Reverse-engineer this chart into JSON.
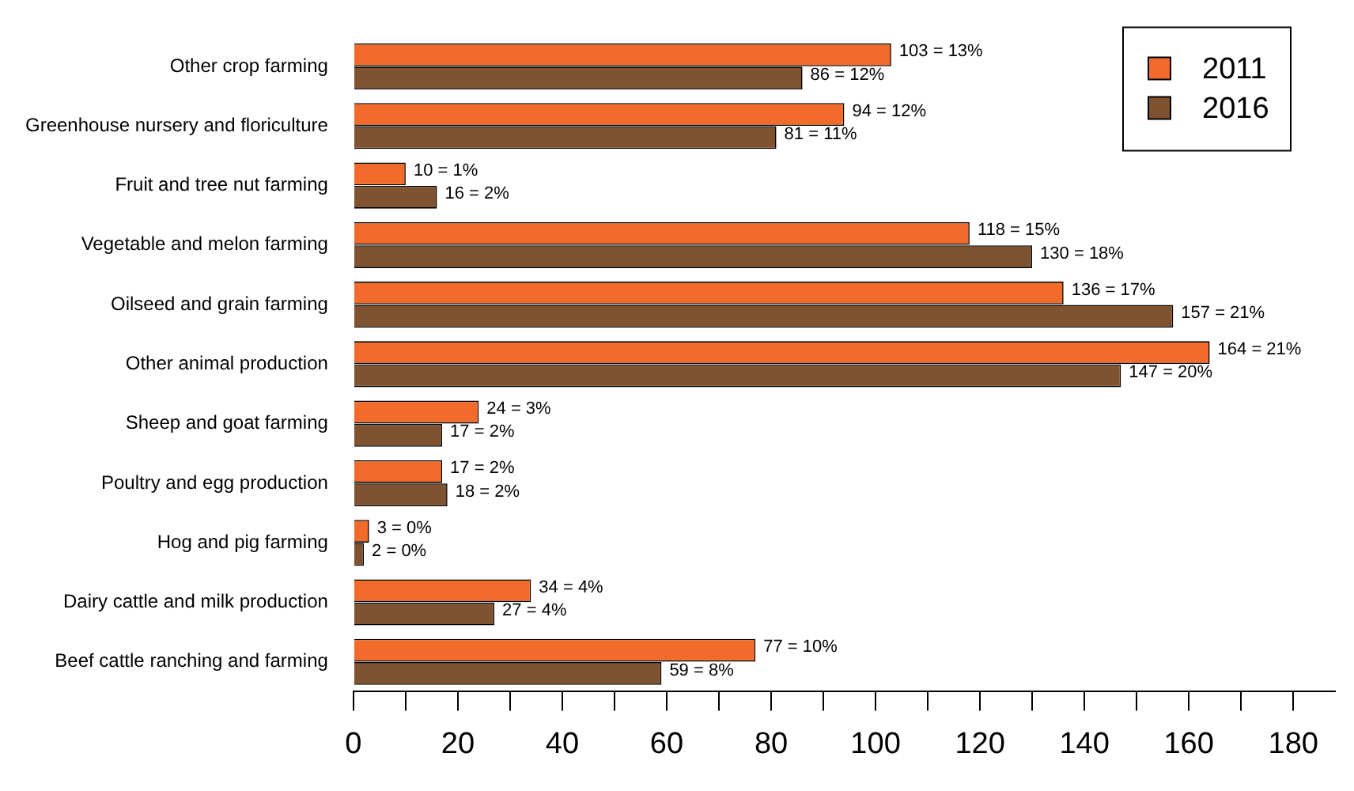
{
  "chart_data": {
    "type": "bar",
    "orientation": "horizontal",
    "categories": [
      "Other crop farming",
      "Greenhouse nursery and floriculture",
      "Fruit and tree nut farming",
      "Vegetable and melon farming",
      "Oilseed and grain farming",
      "Other animal production",
      "Sheep and goat farming",
      "Poultry and egg production",
      "Hog and pig farming",
      "Dairy cattle and milk production",
      "Beef cattle ranching and farming"
    ],
    "series": [
      {
        "name": "2011",
        "color": "#f26b2a",
        "values": [
          103,
          94,
          10,
          118,
          136,
          164,
          24,
          17,
          3,
          34,
          77
        ],
        "value_labels": [
          "103 = 13%",
          "94 = 12%",
          "10 = 1%",
          "118 = 15%",
          "136 = 17%",
          "164 = 21%",
          "24 = 3%",
          "17 = 2%",
          "3 = 0%",
          "34 = 4%",
          "77 = 10%"
        ]
      },
      {
        "name": "2016",
        "color": "#7f5230",
        "values": [
          86,
          81,
          16,
          130,
          157,
          147,
          17,
          18,
          2,
          27,
          59
        ],
        "value_labels": [
          "86 = 12%",
          "81 = 11%",
          "16 = 2%",
          "130 = 18%",
          "157 = 21%",
          "147 = 20%",
          "17 = 2%",
          "18 = 2%",
          "2 = 0%",
          "27 = 4%",
          "59 = 8%"
        ]
      }
    ],
    "xlim": [
      0,
      188
    ],
    "xticks": [
      0,
      {
        "value": 10,
        "label": null
      },
      20,
      {
        "value": 30,
        "label": null
      },
      40,
      {
        "value": 50,
        "label": null
      },
      60,
      {
        "value": 70,
        "label": null
      },
      80,
      {
        "value": 90,
        "label": null
      },
      100,
      {
        "value": 110,
        "label": null
      },
      120,
      {
        "value": 130,
        "label": null
      },
      140,
      {
        "value": 150,
        "label": null
      },
      160,
      {
        "value": 170,
        "label": null
      },
      180
    ],
    "grid": false,
    "legend": "top right"
  }
}
